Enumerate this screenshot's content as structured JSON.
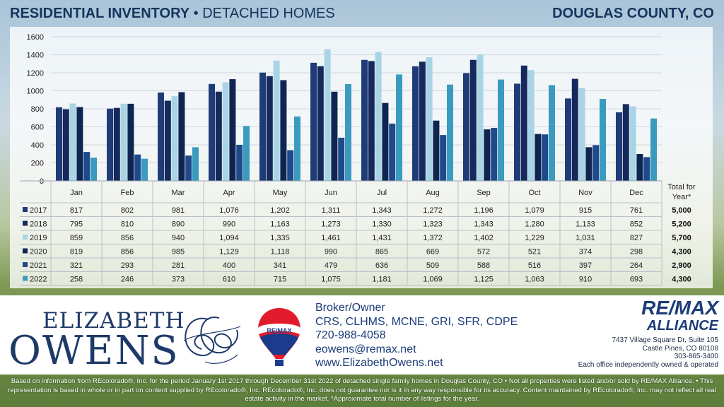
{
  "header": {
    "title_bold": "RESIDENTIAL INVENTORY",
    "title_rest": " • DETACHED HOMES",
    "county": "DOUGLAS COUNTY, CO"
  },
  "colors": {
    "2017": "#1f3c78",
    "2018": "#15295c",
    "2019": "#a9d4e6",
    "2020": "#0f2551",
    "2021": "#1e4a8c",
    "2022": "#3a9bbf"
  },
  "chart_data": {
    "type": "bar",
    "categories": [
      "Jan",
      "Feb",
      "Mar",
      "Apr",
      "May",
      "Jun",
      "Jul",
      "Aug",
      "Sep",
      "Oct",
      "Nov",
      "Dec"
    ],
    "ylim": [
      0,
      1600
    ],
    "yticks": [
      0,
      200,
      400,
      600,
      800,
      1000,
      1200,
      1400,
      1600
    ],
    "grid": true,
    "total_header": "Total for Year*",
    "series": [
      {
        "name": "2017",
        "values": [
          817,
          802,
          981,
          1076,
          1202,
          1311,
          1343,
          1272,
          1196,
          1079,
          915,
          761
        ],
        "labels": [
          "817",
          "802",
          "981",
          "1,076",
          "1,202",
          "1,311",
          "1,343",
          "1,272",
          "1,196",
          "1,079",
          "915",
          "761"
        ],
        "total": "5,000"
      },
      {
        "name": "2018",
        "values": [
          795,
          810,
          890,
          990,
          1163,
          1273,
          1330,
          1323,
          1343,
          1280,
          1133,
          852
        ],
        "labels": [
          "795",
          "810",
          "890",
          "990",
          "1,163",
          "1,273",
          "1,330",
          "1,323",
          "1,343",
          "1,280",
          "1,133",
          "852"
        ],
        "total": "5,200"
      },
      {
        "name": "2019",
        "values": [
          859,
          856,
          940,
          1094,
          1335,
          1461,
          1431,
          1372,
          1402,
          1229,
          1031,
          827
        ],
        "labels": [
          "859",
          "856",
          "940",
          "1,094",
          "1,335",
          "1,461",
          "1,431",
          "1,372",
          "1,402",
          "1,229",
          "1,031",
          "827"
        ],
        "total": "5,700"
      },
      {
        "name": "2020",
        "values": [
          819,
          856,
          985,
          1129,
          1118,
          990,
          865,
          669,
          572,
          521,
          374,
          298
        ],
        "labels": [
          "819",
          "856",
          "985",
          "1,129",
          "1,118",
          "990",
          "865",
          "669",
          "572",
          "521",
          "374",
          "298"
        ],
        "total": "4,300"
      },
      {
        "name": "2021",
        "values": [
          321,
          293,
          281,
          400,
          341,
          479,
          636,
          509,
          588,
          516,
          397,
          264
        ],
        "labels": [
          "321",
          "293",
          "281",
          "400",
          "341",
          "479",
          "636",
          "509",
          "588",
          "516",
          "397",
          "264"
        ],
        "total": "2,900"
      },
      {
        "name": "2022",
        "values": [
          258,
          246,
          373,
          610,
          715,
          1075,
          1181,
          1069,
          1125,
          1063,
          910,
          693
        ],
        "labels": [
          "258",
          "246",
          "373",
          "610",
          "715",
          "1,075",
          "1,181",
          "1,069",
          "1,125",
          "1,063",
          "910",
          "693"
        ],
        "total": "4,300"
      }
    ]
  },
  "footer": {
    "logo_first": "ELIZABETH",
    "logo_last": "OWENS",
    "balloon_label": "RE/MAX",
    "contact": {
      "role": "Broker/Owner",
      "credentials": "CRS, CLHMS, MCNE, GRI, SFR, CDPE",
      "phone": "720-988-4058",
      "email": "eowens@remax.net",
      "website": "www.ElizabethOwens.net"
    },
    "brokerage": {
      "logo": "RE/MAX",
      "sub": "ALLIANCE",
      "address1": "7437 Village Square Dr, Suite 105",
      "address2": "Castle Pines, CO 80108",
      "phone": "303-865-3400",
      "note": "Each office independently owned & operated"
    }
  },
  "disclaimer": {
    "text": "Based on information from REcolorado®, Inc. for the period January 1st 2017 through December 31st 2022 of detached single family homes in Douglas County, CO • Not all properties were listed and/or sold by RE/MAX Alliance. • This representation is based in whole or in part on content supplied by REcolorado®, Inc. REcolorado®, Inc. does not guarantee nor is it in any way responsible for its accuracy. Content maintained by REcolorado®, Inc. may not reflect all real estate activity in the market.",
    "note": "*Approximate total number of listings for the year."
  }
}
